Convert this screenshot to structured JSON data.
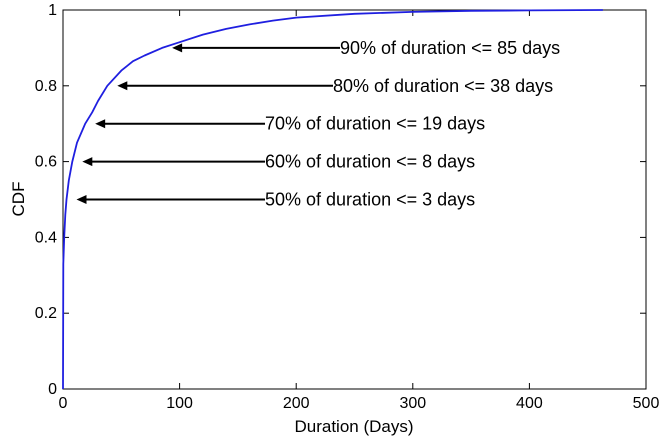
{
  "chart_data": {
    "type": "line",
    "title": "",
    "xlabel": "Duration (Days)",
    "ylabel": "CDF",
    "xlim": [
      0,
      500
    ],
    "ylim": [
      0,
      1
    ],
    "xticks": [
      0,
      100,
      200,
      300,
      400,
      500
    ],
    "yticks": [
      0,
      0.2,
      0.4,
      0.6,
      0.8,
      1
    ],
    "xtick_labels": [
      "0",
      "100",
      "200",
      "300",
      "400",
      "500"
    ],
    "ytick_labels": [
      "0",
      "0.2",
      "0.4",
      "0.6",
      "0.8",
      "1"
    ],
    "grid": false,
    "series": [
      {
        "color": "#1f1fe0",
        "x": [
          0,
          0.3,
          1,
          2,
          3,
          5,
          8,
          12,
          19,
          25,
          30,
          38,
          50,
          60,
          70,
          85,
          100,
          120,
          140,
          160,
          180,
          200,
          250,
          300,
          350,
          400,
          463
        ],
        "y": [
          0,
          0.33,
          0.4,
          0.46,
          0.5,
          0.55,
          0.6,
          0.65,
          0.7,
          0.73,
          0.76,
          0.8,
          0.84,
          0.865,
          0.88,
          0.9,
          0.915,
          0.935,
          0.95,
          0.962,
          0.972,
          0.98,
          0.99,
          0.995,
          0.998,
          0.999,
          1.0
        ]
      }
    ],
    "annotations": [
      {
        "text": "90% of duration <= 85 days",
        "x": 85,
        "y": 0.9
      },
      {
        "text": "80% of duration <= 38 days",
        "x": 38,
        "y": 0.8
      },
      {
        "text": "70% of duration <= 19 days",
        "x": 19,
        "y": 0.7
      },
      {
        "text": "60% of duration <= 8 days",
        "x": 8,
        "y": 0.6
      },
      {
        "text": "50% of duration <= 3 days",
        "x": 3,
        "y": 0.5
      }
    ]
  }
}
